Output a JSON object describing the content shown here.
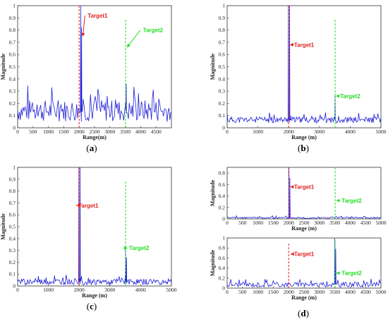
{
  "colors": {
    "signal": "#1f1fd6",
    "target1": "#e02020",
    "target2": "#22dd22"
  },
  "chart_data": [
    {
      "id": "a",
      "type": "line",
      "caption_letter": "a",
      "xlabel": "Range(m)",
      "ylabel": "Magnitude",
      "xlim": [
        0,
        5000
      ],
      "ylim": [
        0,
        1
      ],
      "xticks": [
        0,
        500,
        1000,
        1500,
        2000,
        2500,
        3000,
        3500,
        4000,
        4500
      ],
      "yticks": [
        0,
        0.1,
        0.2,
        0.3,
        0.4,
        0.5,
        0.6,
        0.7,
        0.8,
        0.9,
        1
      ],
      "noise": {
        "base": 0.14,
        "amp": 0.09,
        "seed": 7,
        "step": 30,
        "peaks": [
          {
            "x": 2050,
            "y": 1.0
          },
          {
            "x": 2080,
            "y": 0.82
          },
          {
            "x": 3530,
            "y": 0.36
          }
        ]
      },
      "markers": [
        {
          "x": 2000,
          "y0": 0,
          "y1": 1.0,
          "color": "target1"
        },
        {
          "x": 3510,
          "y0": 0,
          "y1": 0.89,
          "color": "target2"
        }
      ],
      "annotations": [
        {
          "text": "Target1",
          "color": "target1",
          "tx": 2600,
          "ty": 0.92,
          "ax": 2120,
          "ay": 0.75
        },
        {
          "text": "Target2",
          "color": "target2",
          "tx": 4400,
          "ty": 0.8,
          "ax": 3560,
          "ay": 0.66
        }
      ]
    },
    {
      "id": "b",
      "type": "line",
      "caption_letter": "b",
      "xlabel": "Range (m)",
      "ylabel": "Magnitude",
      "xlim": [
        0,
        5000
      ],
      "ylim": [
        0,
        1
      ],
      "xticks": [
        0,
        1000,
        2000,
        3000,
        4000,
        5000
      ],
      "yticks": [
        0,
        0.1,
        0.2,
        0.3,
        0.4,
        0.5,
        0.6,
        0.7,
        0.8,
        0.9,
        1
      ],
      "noise": {
        "base": 0.065,
        "amp": 0.025,
        "seed": 11,
        "step": 25,
        "peaks": [
          {
            "x": 1990,
            "y": 1.0
          },
          {
            "x": 2030,
            "y": 1.0
          },
          {
            "x": 2070,
            "y": 0.1
          },
          {
            "x": 3510,
            "y": 0.28
          }
        ]
      },
      "markers": [
        {
          "x": 2000,
          "y0": 0,
          "y1": 1.0,
          "color": "target1"
        },
        {
          "x": 3510,
          "y0": 0,
          "y1": 0.89,
          "color": "target2"
        }
      ],
      "annotations": [
        {
          "text": "Target1",
          "color": "target1",
          "tx": 2500,
          "ty": 0.68,
          "ax": 2050,
          "ay": 0.68
        },
        {
          "text": "Target2",
          "color": "target2",
          "tx": 4000,
          "ty": 0.26,
          "ax": 3550,
          "ay": 0.26
        }
      ]
    },
    {
      "id": "c",
      "type": "line",
      "caption_letter": "c",
      "xlabel": "Range (m)",
      "ylabel": "Magnitude",
      "xlim": [
        0,
        5000
      ],
      "ylim": [
        0,
        1
      ],
      "xticks": [
        0,
        1000,
        2000,
        3000,
        4000,
        5000
      ],
      "yticks": [
        0,
        0.1,
        0.2,
        0.3,
        0.4,
        0.5,
        0.6,
        0.7,
        0.8,
        0.9,
        1
      ],
      "noise": {
        "base": 0.035,
        "amp": 0.025,
        "seed": 19,
        "step": 25,
        "peaks": [
          {
            "x": 1990,
            "y": 1.0
          },
          {
            "x": 2030,
            "y": 1.0
          },
          {
            "x": 3510,
            "y": 0.33
          },
          {
            "x": 3540,
            "y": 0.24
          }
        ]
      },
      "markers": [
        {
          "x": 2000,
          "y0": 0,
          "y1": 1.0,
          "color": "target1"
        },
        {
          "x": 3510,
          "y0": 0,
          "y1": 0.89,
          "color": "target2"
        }
      ],
      "annotations": [
        {
          "text": "Target1",
          "color": "target1",
          "tx": 2300,
          "ty": 0.68,
          "ax": 2060,
          "ay": 0.68
        },
        {
          "text": "Target2",
          "color": "target2",
          "tx": 3950,
          "ty": 0.32,
          "ax": 3560,
          "ay": 0.32
        }
      ]
    },
    {
      "id": "d1",
      "type": "line",
      "caption_letter": "",
      "xlabel": "Range (m)",
      "ylabel": "Magnitude",
      "xlim": [
        0,
        5000
      ],
      "ylim": [
        0,
        0.9
      ],
      "xticks": [
        0,
        500,
        1000,
        1500,
        2000,
        2500,
        3000,
        3500,
        4000,
        4500,
        5000
      ],
      "yticks": [
        0,
        0.2,
        0.4,
        0.6,
        0.8
      ],
      "noise": {
        "base": 0.02,
        "amp": 0.015,
        "seed": 23,
        "step": 30,
        "peaks": [
          {
            "x": 2010,
            "y": 0.9
          },
          {
            "x": 2040,
            "y": 0.72
          }
        ]
      },
      "markers": [
        {
          "x": 2000,
          "y0": 0,
          "y1": 0.9,
          "color": "target1"
        },
        {
          "x": 3510,
          "y0": 0,
          "y1": 0.9,
          "color": "target2"
        }
      ],
      "annotations": [
        {
          "text": "Target1",
          "color": "target1",
          "tx": 2500,
          "ty": 0.56,
          "ax": 2060,
          "ay": 0.56
        },
        {
          "text": "Target2",
          "color": "target2",
          "tx": 4050,
          "ty": 0.32,
          "ax": 3560,
          "ay": 0.32
        }
      ]
    },
    {
      "id": "d2",
      "type": "line",
      "caption_letter": "d",
      "xlabel": "Range (m)",
      "ylabel": "Magnitude",
      "xlim": [
        0,
        5000
      ],
      "ylim": [
        0,
        1
      ],
      "xticks": [
        0,
        500,
        1000,
        1500,
        2000,
        2500,
        3000,
        3500,
        4000,
        4500,
        5000
      ],
      "yticks": [
        0,
        0.2,
        0.4,
        0.6,
        0.8,
        1
      ],
      "noise": {
        "base": 0.07,
        "amp": 0.05,
        "seed": 31,
        "step": 30,
        "peaks": [
          {
            "x": 3500,
            "y": 1.0
          },
          {
            "x": 3530,
            "y": 0.78
          }
        ]
      },
      "markers": [
        {
          "x": 2000,
          "y0": 0,
          "y1": 0.9,
          "color": "target1"
        },
        {
          "x": 3510,
          "y0": 0,
          "y1": 1.0,
          "color": "target2"
        }
      ],
      "annotations": [
        {
          "text": "Target1",
          "color": "target1",
          "tx": 2500,
          "ty": 0.68,
          "ax": 2070,
          "ay": 0.68
        },
        {
          "text": "Target2",
          "color": "target2",
          "tx": 4050,
          "ty": 0.3,
          "ax": 3560,
          "ay": 0.3
        }
      ]
    }
  ]
}
